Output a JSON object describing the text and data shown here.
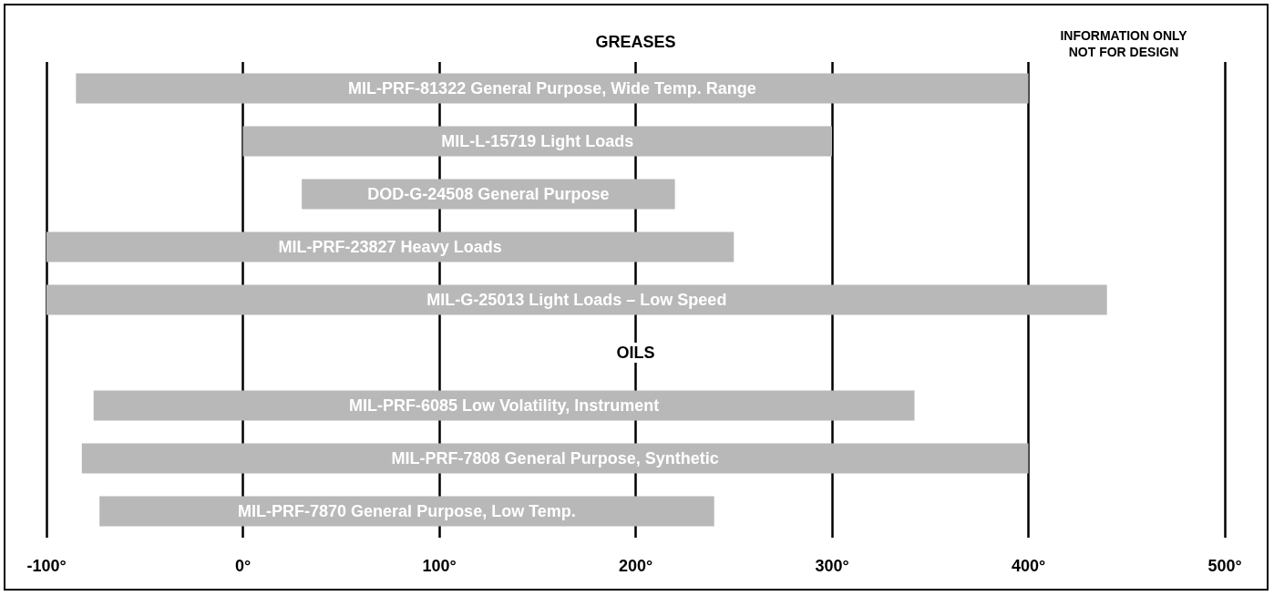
{
  "chart_data": {
    "type": "bar",
    "orientation": "horizontal",
    "categories": [
      "MIL-PRF-81322 General Purpose, Wide Temp. Range",
      "MIL-L-15719 Light Loads",
      "DOD-G-24508 General Purpose",
      "MIL-PRF-23827 Heavy Loads",
      "MIL-G-25013 Light Loads – Low Speed",
      null,
      "MIL-PRF-6085 Low Volatility, Instrument",
      "MIL-PRF-7808 General Purpose, Synthetic",
      "MIL-PRF-7870 General Purpose, Low Temp."
    ],
    "base": [
      -85,
      0,
      30,
      -100,
      -100,
      null,
      -76,
      -82,
      -73
    ],
    "values": [
      485,
      300,
      190,
      350,
      540,
      null,
      418,
      482,
      313
    ],
    "color": "#b8b8b8",
    "xlim": [
      -100,
      500
    ],
    "xticks": [
      {
        "value": -100,
        "label": "-100°"
      },
      {
        "value": 0,
        "label": "0°"
      },
      {
        "value": 100,
        "label": "100°"
      },
      {
        "value": 200,
        "label": "200°"
      },
      {
        "value": 300,
        "label": "300°"
      },
      {
        "value": 400,
        "label": "400°"
      },
      {
        "value": 500,
        "label": "500°"
      }
    ],
    "annotations": [
      "GREASES",
      "OILS",
      "INFORMATION ONLY\nNOT FOR DESIGN"
    ],
    "grid": "x"
  }
}
